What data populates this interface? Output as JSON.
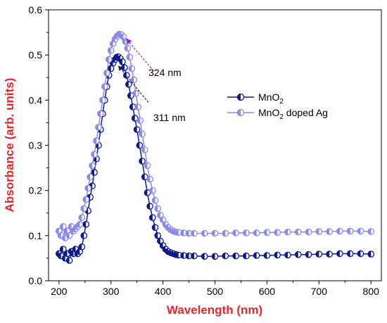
{
  "chart_data": {
    "type": "scatter",
    "title": "",
    "xlabel": "Wavelength (nm)",
    "ylabel": "Absorbance (arb. units)",
    "xlim": [
      180,
      820
    ],
    "ylim": [
      0.0,
      0.6
    ],
    "xticks": [
      200,
      300,
      400,
      500,
      600,
      700,
      800
    ],
    "yticks": [
      0.0,
      0.1,
      0.2,
      0.3,
      0.4,
      0.5,
      0.6
    ],
    "xtick_labels": [
      "200",
      "300",
      "400",
      "500",
      "600",
      "700",
      "800"
    ],
    "ytick_labels": [
      "0.0",
      "0.1",
      "0.2",
      "0.3",
      "0.4",
      "0.5",
      "0.6"
    ],
    "grid": false,
    "legend_position": "right",
    "series": [
      {
        "name": "MnO2",
        "name_main": "MnO",
        "name_sub": "2",
        "name_rest": "",
        "color": "#0d1a8c",
        "marker": "half-filled-circle",
        "points": [
          [
            200,
            0.06
          ],
          [
            204,
            0.055
          ],
          [
            208,
            0.07
          ],
          [
            212,
            0.05
          ],
          [
            216,
            0.06
          ],
          [
            220,
            0.045
          ],
          [
            224,
            0.065
          ],
          [
            228,
            0.06
          ],
          [
            232,
            0.07
          ],
          [
            236,
            0.06
          ],
          [
            240,
            0.065
          ],
          [
            244,
            0.075
          ],
          [
            248,
            0.1
          ],
          [
            252,
            0.125
          ],
          [
            256,
            0.155
          ],
          [
            260,
            0.185
          ],
          [
            264,
            0.21
          ],
          [
            268,
            0.24
          ],
          [
            272,
            0.27
          ],
          [
            276,
            0.3
          ],
          [
            280,
            0.335
          ],
          [
            284,
            0.37
          ],
          [
            288,
            0.4
          ],
          [
            292,
            0.43
          ],
          [
            296,
            0.455
          ],
          [
            300,
            0.47
          ],
          [
            304,
            0.482
          ],
          [
            308,
            0.49
          ],
          [
            311,
            0.495
          ],
          [
            314,
            0.496
          ],
          [
            318,
            0.492
          ],
          [
            322,
            0.485
          ],
          [
            326,
            0.472
          ],
          [
            330,
            0.455
          ],
          [
            334,
            0.435
          ],
          [
            338,
            0.41
          ],
          [
            342,
            0.385
          ],
          [
            346,
            0.36
          ],
          [
            350,
            0.335
          ],
          [
            355,
            0.3
          ],
          [
            360,
            0.265
          ],
          [
            365,
            0.23
          ],
          [
            370,
            0.195
          ],
          [
            375,
            0.165
          ],
          [
            380,
            0.14
          ],
          [
            385,
            0.118
          ],
          [
            390,
            0.1
          ],
          [
            395,
            0.088
          ],
          [
            400,
            0.078
          ],
          [
            405,
            0.07
          ],
          [
            410,
            0.065
          ],
          [
            415,
            0.062
          ],
          [
            420,
            0.06
          ],
          [
            425,
            0.058
          ],
          [
            430,
            0.057
          ],
          [
            440,
            0.056
          ],
          [
            450,
            0.055
          ],
          [
            460,
            0.055
          ],
          [
            480,
            0.054
          ],
          [
            500,
            0.054
          ],
          [
            520,
            0.055
          ],
          [
            540,
            0.055
          ],
          [
            560,
            0.055
          ],
          [
            580,
            0.056
          ],
          [
            600,
            0.056
          ],
          [
            620,
            0.057
          ],
          [
            640,
            0.057
          ],
          [
            660,
            0.058
          ],
          [
            680,
            0.058
          ],
          [
            700,
            0.059
          ],
          [
            720,
            0.059
          ],
          [
            740,
            0.06
          ],
          [
            760,
            0.06
          ],
          [
            780,
            0.06
          ],
          [
            800,
            0.059
          ]
        ]
      },
      {
        "name": "MnO2 doped Ag",
        "name_main": "MnO",
        "name_sub": "2",
        "name_rest": " doped Ag",
        "color": "#8a8ae8",
        "marker": "half-filled-circle",
        "points": [
          [
            200,
            0.11
          ],
          [
            204,
            0.1
          ],
          [
            208,
            0.12
          ],
          [
            212,
            0.095
          ],
          [
            216,
            0.11
          ],
          [
            220,
            0.1
          ],
          [
            224,
            0.12
          ],
          [
            228,
            0.11
          ],
          [
            232,
            0.115
          ],
          [
            236,
            0.12
          ],
          [
            240,
            0.125
          ],
          [
            244,
            0.14
          ],
          [
            248,
            0.16
          ],
          [
            252,
            0.18
          ],
          [
            256,
            0.205
          ],
          [
            260,
            0.23
          ],
          [
            264,
            0.255
          ],
          [
            268,
            0.28
          ],
          [
            272,
            0.31
          ],
          [
            276,
            0.34
          ],
          [
            280,
            0.37
          ],
          [
            284,
            0.4
          ],
          [
            288,
            0.43
          ],
          [
            292,
            0.46
          ],
          [
            296,
            0.49
          ],
          [
            300,
            0.51
          ],
          [
            304,
            0.525
          ],
          [
            308,
            0.535
          ],
          [
            312,
            0.542
          ],
          [
            316,
            0.546
          ],
          [
            320,
            0.545
          ],
          [
            324,
            0.54
          ],
          [
            328,
            0.53
          ],
          [
            332,
            0.515
          ],
          [
            336,
            0.495
          ],
          [
            340,
            0.47
          ],
          [
            344,
            0.445
          ],
          [
            348,
            0.415
          ],
          [
            352,
            0.385
          ],
          [
            356,
            0.355
          ],
          [
            360,
            0.325
          ],
          [
            365,
            0.29
          ],
          [
            370,
            0.255
          ],
          [
            375,
            0.225
          ],
          [
            380,
            0.2
          ],
          [
            385,
            0.178
          ],
          [
            390,
            0.16
          ],
          [
            395,
            0.145
          ],
          [
            400,
            0.135
          ],
          [
            405,
            0.125
          ],
          [
            410,
            0.118
          ],
          [
            415,
            0.113
          ],
          [
            420,
            0.11
          ],
          [
            425,
            0.108
          ],
          [
            430,
            0.107
          ],
          [
            440,
            0.106
          ],
          [
            450,
            0.105
          ],
          [
            460,
            0.105
          ],
          [
            480,
            0.105
          ],
          [
            500,
            0.105
          ],
          [
            520,
            0.105
          ],
          [
            540,
            0.106
          ],
          [
            560,
            0.106
          ],
          [
            580,
            0.106
          ],
          [
            600,
            0.107
          ],
          [
            620,
            0.107
          ],
          [
            640,
            0.108
          ],
          [
            660,
            0.108
          ],
          [
            680,
            0.108
          ],
          [
            700,
            0.109
          ],
          [
            720,
            0.109
          ],
          [
            740,
            0.11
          ],
          [
            760,
            0.11
          ],
          [
            780,
            0.11
          ],
          [
            800,
            0.109
          ]
        ]
      }
    ],
    "annotations": [
      {
        "text": "324 nm",
        "color": "#8a2be2",
        "arrow_from": [
          382,
          0.465
        ],
        "arrow_to": [
          330,
          0.535
        ]
      },
      {
        "text": "311 nm",
        "color": "#1a2070",
        "arrow_from": [
          372,
          0.395
        ],
        "arrow_to": [
          315,
          0.475
        ]
      }
    ]
  }
}
